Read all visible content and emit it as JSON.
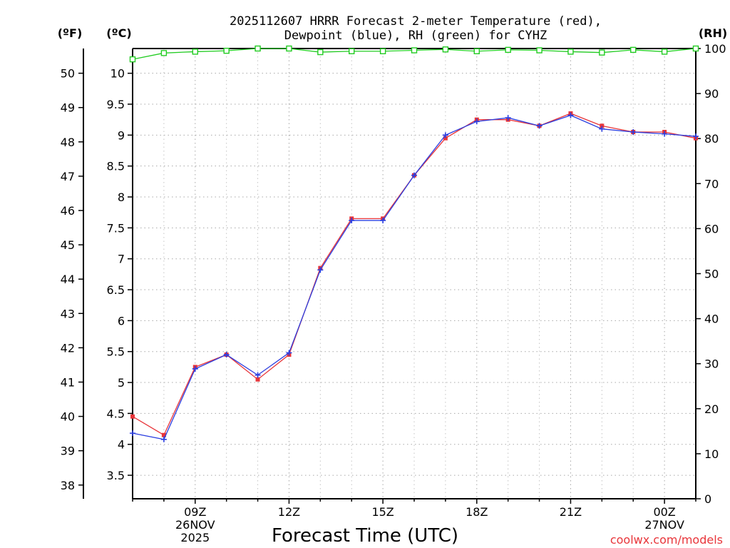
{
  "chart_data": {
    "type": "line",
    "title": [
      "2025112607 HRRR Forecast 2-meter Temperature (red),",
      "Dewpoint (blue), RH (green) for CYHZ"
    ],
    "units": {
      "fahrenheit": "(ºF)",
      "celsius": "(ºC)",
      "rh": "(RH)"
    },
    "xlabel": "Forecast Time (UTC)",
    "credit": "coolwx.com/models",
    "x_hours": [
      7,
      8,
      9,
      10,
      11,
      12,
      13,
      14,
      15,
      16,
      17,
      18,
      19,
      20,
      21,
      22,
      23,
      24,
      25
    ],
    "xlim": [
      7,
      25
    ],
    "celsius_ylim": [
      3.12,
      10.4
    ],
    "rh_ylim": [
      0,
      100
    ],
    "fahrenheit_ylim": [
      37.6,
      50.72
    ],
    "celsius_ticks": [
      3.5,
      4,
      4.5,
      5,
      5.5,
      6,
      6.5,
      7,
      7.5,
      8,
      8.5,
      9,
      9.5,
      10
    ],
    "fahrenheit_ticks": [
      38,
      39,
      40,
      41,
      42,
      43,
      44,
      45,
      46,
      47,
      48,
      49,
      50
    ],
    "rh_ticks": [
      0,
      10,
      20,
      30,
      40,
      50,
      60,
      70,
      80,
      90,
      100
    ],
    "x_ticks": [
      {
        "hour": 9,
        "lines": [
          "09Z",
          "26NOV",
          "2025"
        ]
      },
      {
        "hour": 12,
        "lines": [
          "12Z"
        ]
      },
      {
        "hour": 15,
        "lines": [
          "15Z"
        ]
      },
      {
        "hour": 18,
        "lines": [
          "18Z"
        ]
      },
      {
        "hour": 21,
        "lines": [
          "21Z"
        ]
      },
      {
        "hour": 24,
        "lines": [
          "00Z",
          "27NOV"
        ]
      }
    ],
    "series": [
      {
        "name": "Temperature",
        "color": "#e8353a",
        "marker": "square",
        "values": [
          4.45,
          4.15,
          5.25,
          5.45,
          5.05,
          5.45,
          6.85,
          7.65,
          7.65,
          8.35,
          8.95,
          9.25,
          9.25,
          9.15,
          9.35,
          9.15,
          9.05,
          9.05,
          8.95
        ]
      },
      {
        "name": "Dewpoint",
        "color": "#2b3ee0",
        "marker": "plus",
        "values": [
          4.18,
          4.08,
          5.22,
          5.45,
          5.12,
          5.48,
          6.82,
          7.62,
          7.62,
          8.35,
          9.0,
          9.22,
          9.28,
          9.15,
          9.32,
          9.1,
          9.05,
          9.02,
          8.98
        ]
      },
      {
        "name": "RH",
        "color": "#22cc22",
        "marker": "open-square",
        "values": [
          97.6,
          99.0,
          99.3,
          99.5,
          100,
          100,
          99.2,
          99.4,
          99.4,
          99.6,
          99.8,
          99.4,
          99.7,
          99.6,
          99.3,
          99.1,
          99.7,
          99.3,
          100
        ]
      }
    ]
  }
}
